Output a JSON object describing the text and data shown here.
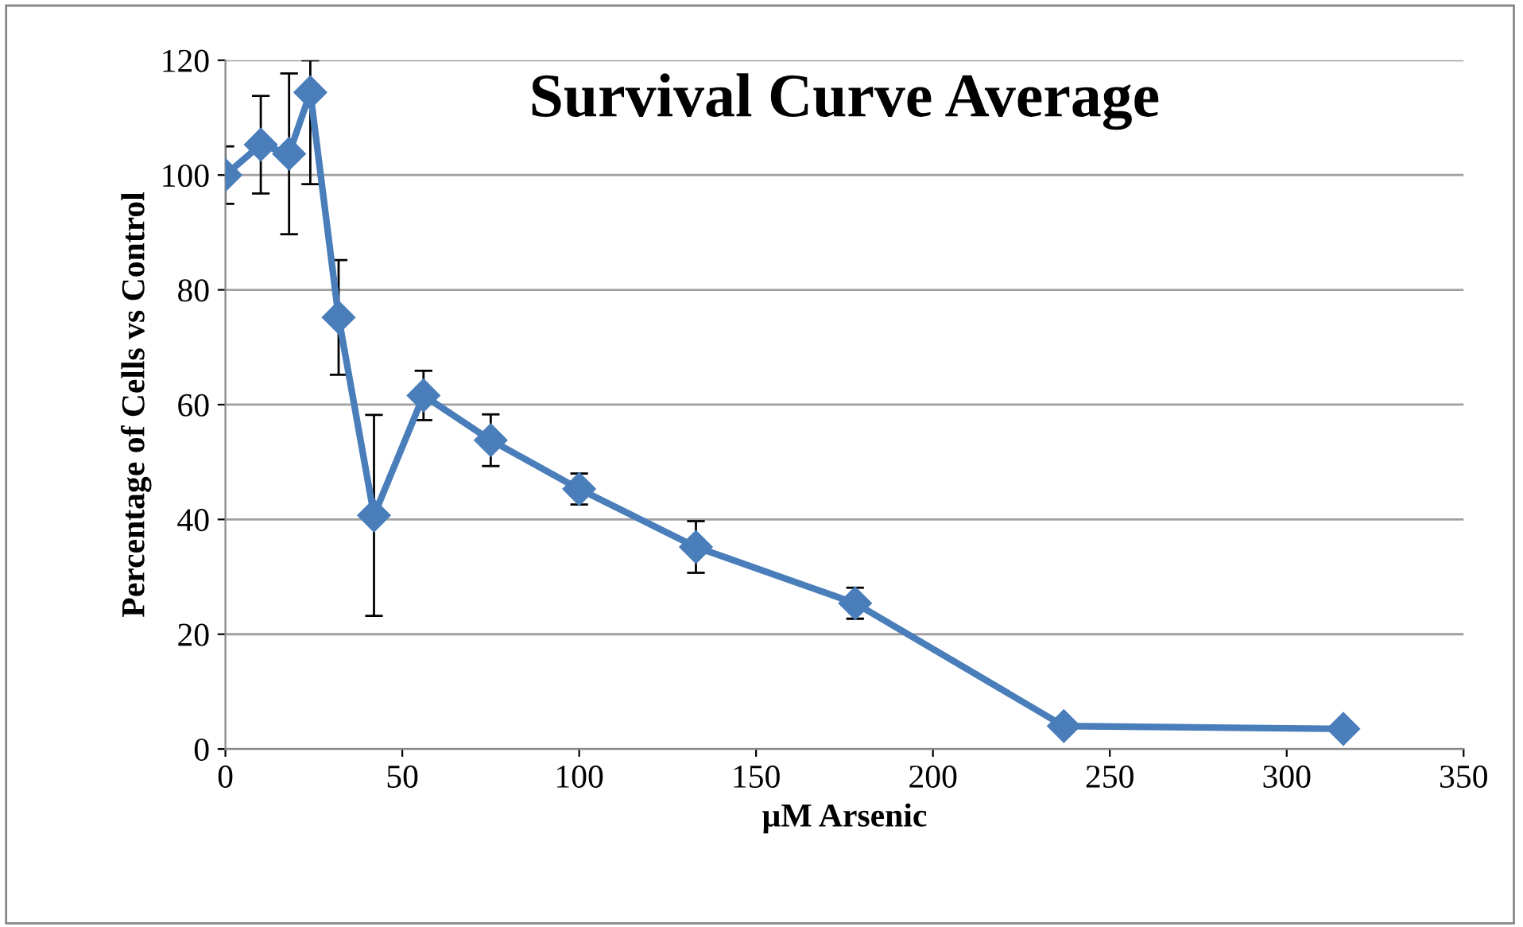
{
  "chart_data": {
    "type": "line",
    "title": "Survival Curve Average",
    "xlabel": "µM Arsenic",
    "ylabel": "Percentage of Cells vs Control",
    "x": [
      0,
      10,
      18,
      24,
      32,
      42,
      56,
      75,
      100,
      133,
      178,
      237,
      316
    ],
    "series": [
      {
        "color": "#4a7ebb",
        "values": [
          100,
          105.3,
          103.7,
          114.4,
          75.2,
          40.7,
          61.6,
          53.8,
          45.3,
          35.2,
          25.4,
          4,
          3.5
        ],
        "errors": [
          5,
          8.5,
          14,
          [
            98.4,
            120
          ],
          10,
          17.5,
          4.3,
          4.5,
          2.7,
          4.5,
          2.7,
          null,
          null
        ]
      }
    ],
    "xlim": [
      0,
      350
    ],
    "xticks": [
      0,
      50,
      100,
      150,
      200,
      250,
      300,
      350
    ],
    "ylim": [
      0,
      120
    ],
    "yticks": [
      0,
      20,
      40,
      60,
      80,
      100,
      120
    ],
    "grid": "y",
    "marker": "diamond",
    "line_style": "solid"
  }
}
